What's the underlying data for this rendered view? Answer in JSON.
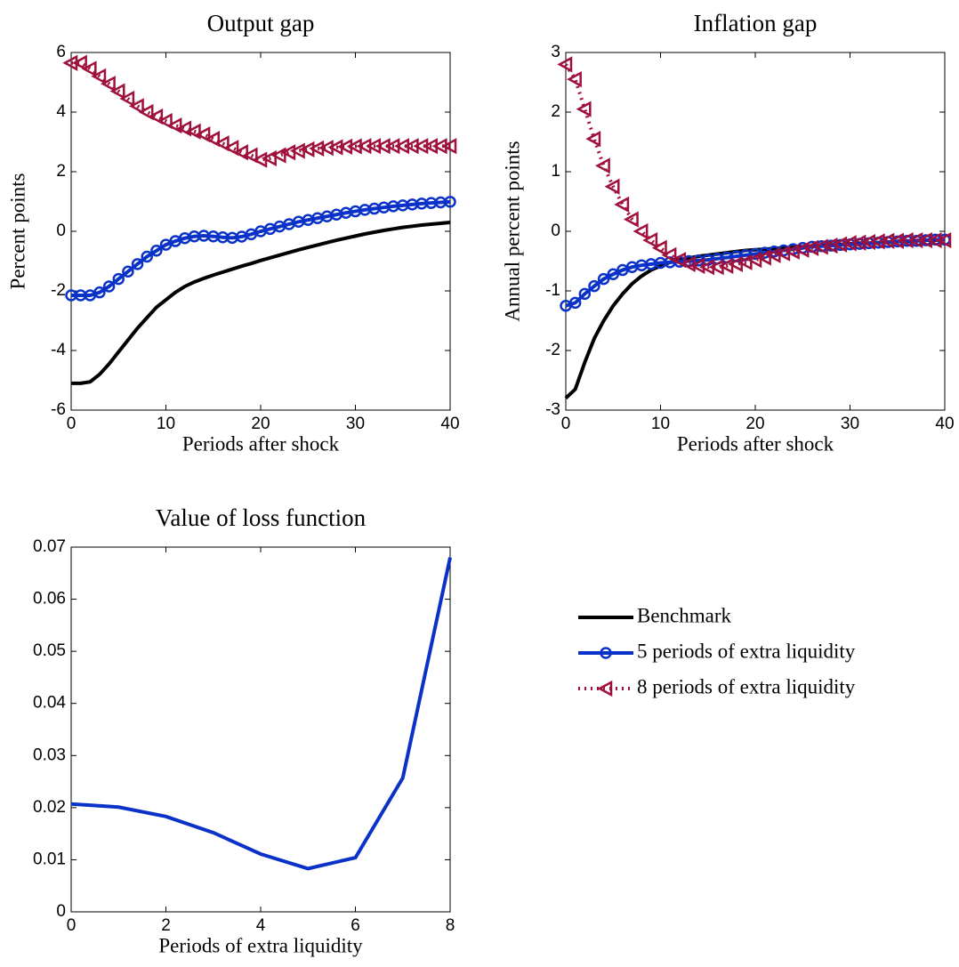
{
  "chart_data": [
    {
      "type": "line",
      "title": "Output gap",
      "xlabel": "Periods after shock",
      "ylabel": "Percent points",
      "x": [
        0,
        1,
        2,
        3,
        4,
        5,
        6,
        7,
        8,
        9,
        10,
        11,
        12,
        13,
        14,
        15,
        16,
        17,
        18,
        19,
        20,
        21,
        22,
        23,
        24,
        25,
        26,
        27,
        28,
        29,
        30,
        31,
        32,
        33,
        34,
        35,
        36,
        37,
        38,
        39,
        40
      ],
      "xlim": [
        0,
        40
      ],
      "xticks": [
        0,
        10,
        20,
        30,
        40
      ],
      "ylim": [
        -6,
        6
      ],
      "yticks": [
        -6,
        -4,
        -2,
        0,
        2,
        4,
        6
      ],
      "series": [
        {
          "name": "Benchmark",
          "color": "#000000",
          "linestyle": "solid",
          "marker": "none",
          "values": [
            -5.1,
            -5.1,
            -5.05,
            -4.8,
            -4.45,
            -4.05,
            -3.65,
            -3.25,
            -2.9,
            -2.55,
            -2.3,
            -2.05,
            -1.85,
            -1.7,
            -1.58,
            -1.47,
            -1.37,
            -1.27,
            -1.17,
            -1.08,
            -0.98,
            -0.89,
            -0.8,
            -0.71,
            -0.62,
            -0.54,
            -0.46,
            -0.38,
            -0.3,
            -0.23,
            -0.16,
            -0.09,
            -0.03,
            0.03,
            0.08,
            0.13,
            0.17,
            0.21,
            0.24,
            0.27,
            0.3
          ]
        },
        {
          "name": "5 periods of extra liquidity",
          "color": "#0a32c8",
          "linestyle": "solid",
          "marker": "circle",
          "values": [
            -2.15,
            -2.15,
            -2.15,
            -2.05,
            -1.85,
            -1.6,
            -1.35,
            -1.1,
            -0.85,
            -0.65,
            -0.45,
            -0.33,
            -0.23,
            -0.17,
            -0.15,
            -0.17,
            -0.2,
            -0.22,
            -0.18,
            -0.1,
            0.0,
            0.08,
            0.16,
            0.24,
            0.32,
            0.38,
            0.44,
            0.5,
            0.56,
            0.62,
            0.67,
            0.72,
            0.76,
            0.8,
            0.84,
            0.87,
            0.9,
            0.93,
            0.95,
            0.97,
            0.99
          ]
        },
        {
          "name": "8 periods of extra liquidity",
          "color": "#a0103c",
          "linestyle": "dotted",
          "marker": "triangle-left",
          "values": [
            5.65,
            5.65,
            5.45,
            5.2,
            4.95,
            4.7,
            4.45,
            4.2,
            4.0,
            3.85,
            3.7,
            3.55,
            3.45,
            3.35,
            3.25,
            3.1,
            2.95,
            2.8,
            2.65,
            2.55,
            2.4,
            2.45,
            2.55,
            2.65,
            2.7,
            2.75,
            2.78,
            2.8,
            2.82,
            2.84,
            2.85,
            2.86,
            2.86,
            2.86,
            2.86,
            2.86,
            2.86,
            2.86,
            2.86,
            2.86,
            2.86
          ]
        }
      ]
    },
    {
      "type": "line",
      "title": "Inflation gap",
      "xlabel": "Periods after shock",
      "ylabel": "Annual percent points",
      "x": [
        0,
        1,
        2,
        3,
        4,
        5,
        6,
        7,
        8,
        9,
        10,
        11,
        12,
        13,
        14,
        15,
        16,
        17,
        18,
        19,
        20,
        21,
        22,
        23,
        24,
        25,
        26,
        27,
        28,
        29,
        30,
        31,
        32,
        33,
        34,
        35,
        36,
        37,
        38,
        39,
        40
      ],
      "xlim": [
        0,
        40
      ],
      "xticks": [
        0,
        10,
        20,
        30,
        40
      ],
      "ylim": [
        -3,
        3
      ],
      "yticks": [
        -3,
        -2,
        -1,
        0,
        1,
        2,
        3
      ],
      "series": [
        {
          "name": "Benchmark",
          "color": "#000000",
          "linestyle": "solid",
          "marker": "none",
          "values": [
            -2.8,
            -2.65,
            -2.2,
            -1.8,
            -1.5,
            -1.25,
            -1.05,
            -0.88,
            -0.75,
            -0.65,
            -0.58,
            -0.52,
            -0.48,
            -0.45,
            -0.42,
            -0.4,
            -0.38,
            -0.36,
            -0.34,
            -0.32,
            -0.31,
            -0.3,
            -0.29,
            -0.28,
            -0.27,
            -0.26,
            -0.25,
            -0.24,
            -0.23,
            -0.22,
            -0.21,
            -0.2,
            -0.2,
            -0.19,
            -0.18,
            -0.17,
            -0.17,
            -0.16,
            -0.15,
            -0.15,
            -0.14
          ]
        },
        {
          "name": "5 periods of extra liquidity",
          "color": "#0a32c8",
          "linestyle": "solid",
          "marker": "circle",
          "values": [
            -1.25,
            -1.2,
            -1.05,
            -0.92,
            -0.8,
            -0.72,
            -0.65,
            -0.6,
            -0.57,
            -0.55,
            -0.53,
            -0.52,
            -0.51,
            -0.5,
            -0.49,
            -0.48,
            -0.46,
            -0.44,
            -0.42,
            -0.4,
            -0.38,
            -0.36,
            -0.34,
            -0.32,
            -0.3,
            -0.28,
            -0.26,
            -0.25,
            -0.24,
            -0.23,
            -0.22,
            -0.21,
            -0.2,
            -0.19,
            -0.18,
            -0.17,
            -0.16,
            -0.16,
            -0.15,
            -0.14,
            -0.14
          ]
        },
        {
          "name": "8 periods of extra liquidity",
          "color": "#a0103c",
          "linestyle": "dotted",
          "marker": "triangle-left",
          "values": [
            2.8,
            2.55,
            2.05,
            1.55,
            1.1,
            0.75,
            0.45,
            0.2,
            0.0,
            -0.15,
            -0.28,
            -0.4,
            -0.48,
            -0.55,
            -0.58,
            -0.6,
            -0.6,
            -0.58,
            -0.55,
            -0.52,
            -0.48,
            -0.44,
            -0.4,
            -0.37,
            -0.34,
            -0.31,
            -0.28,
            -0.26,
            -0.24,
            -0.22,
            -0.2,
            -0.19,
            -0.18,
            -0.17,
            -0.16,
            -0.16,
            -0.15,
            -0.15,
            -0.15,
            -0.15,
            -0.15
          ]
        }
      ]
    },
    {
      "type": "line",
      "title": "Value of loss function",
      "xlabel": "Periods of extra liquidity",
      "x": [
        0,
        1,
        2,
        3,
        4,
        5,
        6,
        7,
        8
      ],
      "xlim": [
        0,
        8
      ],
      "xticks": [
        0,
        2,
        4,
        6,
        8
      ],
      "ylim": [
        0,
        0.07
      ],
      "yticks": [
        0,
        0.01,
        0.02,
        0.03,
        0.04,
        0.05,
        0.06,
        0.07
      ],
      "series": [
        {
          "color": "#0a32c8",
          "linestyle": "solid",
          "marker": "none",
          "values": [
            0.0207,
            0.0201,
            0.0183,
            0.0152,
            0.0111,
            0.0083,
            0.0104,
            0.0257,
            0.068
          ]
        }
      ]
    }
  ]
}
